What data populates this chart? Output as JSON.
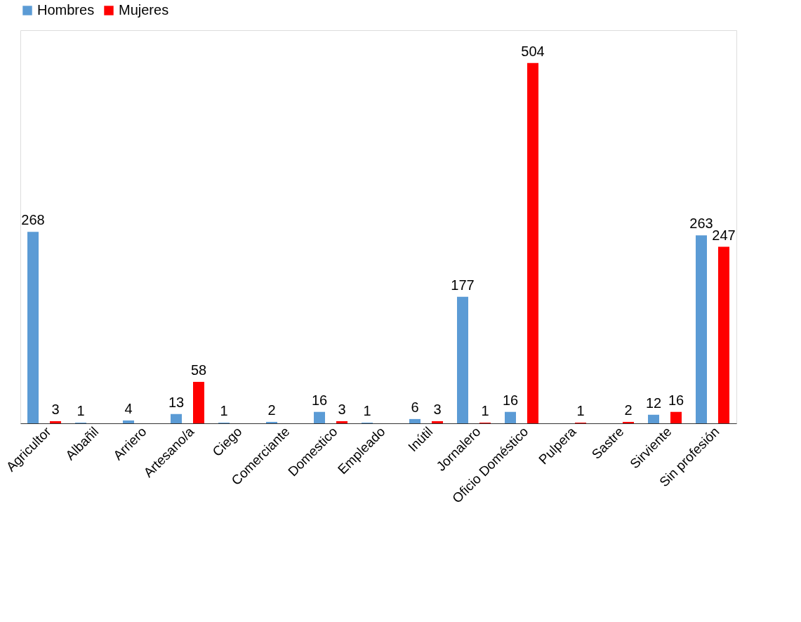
{
  "chart_data": {
    "type": "bar",
    "categories": [
      "Agricultor",
      "Albañil",
      "Arriero",
      "Artesano/a",
      "Ciego",
      "Comerciante",
      "Domestico",
      "Empleado",
      "Inútil",
      "Jornalero",
      "Oficio Doméstico",
      "Pulpera",
      "Sastre",
      "Sirviente",
      "Sin profesión"
    ],
    "series": [
      {
        "name": "Hombres",
        "color": "#5b9bd5",
        "values": [
          268,
          1,
          4,
          13,
          1,
          2,
          16,
          1,
          6,
          177,
          16,
          null,
          null,
          12,
          263
        ]
      },
      {
        "name": "Mujeres",
        "color": "#ff0000",
        "values": [
          3,
          null,
          null,
          58,
          null,
          null,
          3,
          null,
          3,
          1,
          504,
          1,
          2,
          16,
          247
        ]
      }
    ],
    "data_labels": true,
    "legend": "top",
    "grid": false
  }
}
